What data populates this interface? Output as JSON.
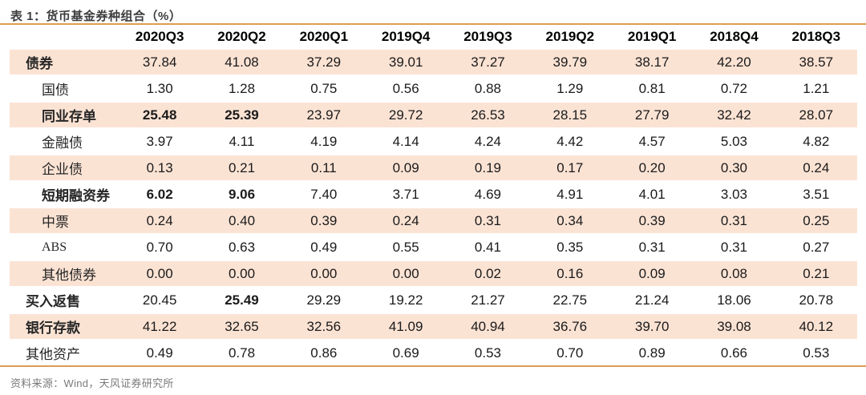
{
  "title": "表 1：货币基金券种组合（%）",
  "source": "资料来源：Wind，天风证券研究所",
  "colors": {
    "accent_rule": "#dd9c52",
    "row_shade": "#fbe3d4",
    "title_text": "#3d3d3d",
    "source_text": "#7a7a7a",
    "body_text": "#1a1a1a"
  },
  "chart_data": {
    "type": "table",
    "columns": [
      "2020Q3",
      "2020Q2",
      "2020Q1",
      "2019Q4",
      "2019Q3",
      "2019Q2",
      "2019Q1",
      "2018Q4",
      "2018Q3"
    ],
    "rows": [
      {
        "label": "债券",
        "level": 0,
        "bold_label": true,
        "values": [
          "37.84",
          "41.08",
          "37.29",
          "39.01",
          "37.27",
          "39.79",
          "38.17",
          "42.20",
          "38.57"
        ],
        "bold_values": []
      },
      {
        "label": "国债",
        "level": 1,
        "bold_label": false,
        "values": [
          "1.30",
          "1.28",
          "0.75",
          "0.56",
          "0.88",
          "1.29",
          "0.81",
          "0.72",
          "1.21"
        ],
        "bold_values": []
      },
      {
        "label": "同业存单",
        "level": 1,
        "bold_label": true,
        "values": [
          "25.48",
          "25.39",
          "23.97",
          "29.72",
          "26.53",
          "28.15",
          "27.79",
          "32.42",
          "28.07"
        ],
        "bold_values": [
          0,
          1
        ]
      },
      {
        "label": "金融债",
        "level": 1,
        "bold_label": false,
        "values": [
          "3.97",
          "4.11",
          "4.19",
          "4.14",
          "4.24",
          "4.42",
          "4.57",
          "5.03",
          "4.82"
        ],
        "bold_values": []
      },
      {
        "label": "企业债",
        "level": 1,
        "bold_label": false,
        "values": [
          "0.13",
          "0.21",
          "0.11",
          "0.09",
          "0.19",
          "0.17",
          "0.20",
          "0.30",
          "0.24"
        ],
        "bold_values": []
      },
      {
        "label": "短期融资券",
        "level": 1,
        "bold_label": true,
        "values": [
          "6.02",
          "9.06",
          "7.40",
          "3.71",
          "4.69",
          "4.91",
          "4.01",
          "3.03",
          "3.51"
        ],
        "bold_values": [
          0,
          1
        ]
      },
      {
        "label": "中票",
        "level": 1,
        "bold_label": false,
        "values": [
          "0.24",
          "0.40",
          "0.39",
          "0.24",
          "0.31",
          "0.34",
          "0.39",
          "0.31",
          "0.25"
        ],
        "bold_values": []
      },
      {
        "label": "ABS",
        "level": 1,
        "bold_label": false,
        "values": [
          "0.70",
          "0.63",
          "0.49",
          "0.55",
          "0.41",
          "0.35",
          "0.31",
          "0.31",
          "0.27"
        ],
        "bold_values": []
      },
      {
        "label": "其他债券",
        "level": 1,
        "bold_label": false,
        "values": [
          "0.00",
          "0.00",
          "0.00",
          "0.00",
          "0.02",
          "0.16",
          "0.09",
          "0.08",
          "0.21"
        ],
        "bold_values": []
      },
      {
        "label": "买入返售",
        "level": 0,
        "bold_label": true,
        "values": [
          "20.45",
          "25.49",
          "29.29",
          "19.22",
          "21.27",
          "22.75",
          "21.24",
          "18.06",
          "20.78"
        ],
        "bold_values": [
          1
        ]
      },
      {
        "label": "银行存款",
        "level": 0,
        "bold_label": true,
        "values": [
          "41.22",
          "32.65",
          "32.56",
          "41.09",
          "40.94",
          "36.76",
          "39.70",
          "39.08",
          "40.12"
        ],
        "bold_values": []
      },
      {
        "label": "其他资产",
        "level": 0,
        "bold_label": false,
        "values": [
          "0.49",
          "0.78",
          "0.86",
          "0.69",
          "0.53",
          "0.70",
          "0.89",
          "0.66",
          "0.53"
        ],
        "bold_values": []
      }
    ]
  }
}
